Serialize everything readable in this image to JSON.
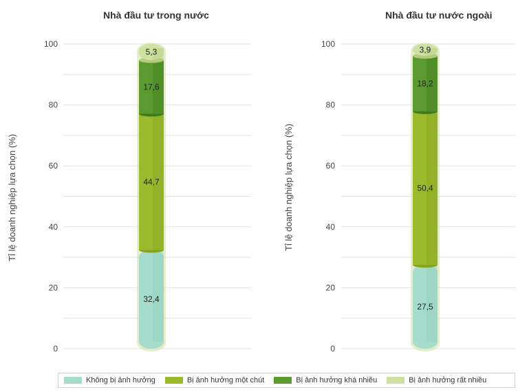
{
  "chart_data": [
    {
      "type": "bar",
      "stacked": true,
      "title": "Nhà đầu tư trong nước",
      "ylabel": "Tỉ lệ doanh nghiệp lựa chọn (%)",
      "ylim": [
        0,
        100
      ],
      "yticks": [
        "0",
        "20",
        "40",
        "60",
        "80",
        "100"
      ],
      "grid": true,
      "series": [
        {
          "name": "Không bị ảnh hưởng",
          "value": 32.4,
          "label": "32,4"
        },
        {
          "name": "Bị ảnh hưởng một chút",
          "value": 44.7,
          "label": "44,7"
        },
        {
          "name": "Bị ảnh hưởng khá nhiều",
          "value": 17.6,
          "label": "17,6"
        },
        {
          "name": "Bị ảnh hưởng rất nhiều",
          "value": 5.3,
          "label": "5,3"
        }
      ]
    },
    {
      "type": "bar",
      "stacked": true,
      "title": "Nhà đầu tư nước ngoài",
      "ylabel": "Tỉ lệ doanh nghiệp lựa chọn (%)",
      "ylim": [
        0,
        100
      ],
      "yticks": [
        "0",
        "20",
        "40",
        "60",
        "80",
        "100"
      ],
      "grid": true,
      "series": [
        {
          "name": "Không bị ảnh hưởng",
          "value": 27.5,
          "label": "27,5"
        },
        {
          "name": "Bị ảnh hưởng một chút",
          "value": 50.4,
          "label": "50,4"
        },
        {
          "name": "Bị ảnh hưởng khá nhiều",
          "value": 18.2,
          "label": "18,2"
        },
        {
          "name": "Bị ảnh hưởng rất nhiều",
          "value": 3.9,
          "label": "3,9"
        }
      ]
    }
  ],
  "legend": {
    "placement": "bottom",
    "items": [
      {
        "label": "Không bị  ảnh hưởng",
        "color": "#a6dccb"
      },
      {
        "label": "Bị ảnh hưởng một chút",
        "color": "#9cba2c"
      },
      {
        "label": "Bị ảnh hưởng khá nhiều",
        "color": "#5a9a2e"
      },
      {
        "label": "Bị ảnh hưởng rất nhiều",
        "color": "#cfe0a0"
      }
    ]
  },
  "colors": {
    "segments": [
      "#a6dccb",
      "#9cba2c",
      "#5a9a2e",
      "#cfe0a0"
    ],
    "segments_dark": [
      "#8ccab8",
      "#86a320",
      "#3f7a1e",
      "#b4cc7e"
    ],
    "tube_rim": "#cfe0a0",
    "grid": "#e3e3e3"
  }
}
